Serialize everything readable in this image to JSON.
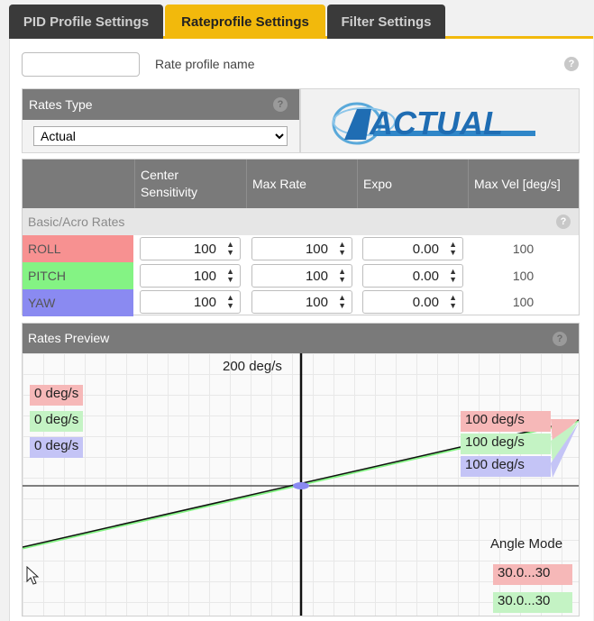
{
  "tabs": [
    {
      "label": "PID Profile Settings",
      "active": false
    },
    {
      "label": "Rateprofile Settings",
      "active": true
    },
    {
      "label": "Filter Settings",
      "active": false
    }
  ],
  "rate_profile": {
    "name_value": "",
    "name_label": "Rate profile name",
    "help_icon": "question-icon"
  },
  "rates_type": {
    "title": "Rates Type",
    "selected": "Actual",
    "logo_text": "ACTUAL"
  },
  "table": {
    "headers": [
      "Center\nSensitivity",
      "Max Rate",
      "Expo",
      "Max Vel [deg/s]"
    ],
    "section": "Basic/Acro Rates",
    "rows": [
      {
        "axis": "ROLL",
        "color": "#f79191",
        "center": "100",
        "max_rate": "100",
        "expo": "0.00",
        "max_vel": "100"
      },
      {
        "axis": "PITCH",
        "color": "#84f384",
        "center": "100",
        "max_rate": "100",
        "expo": "0.00",
        "max_vel": "100"
      },
      {
        "axis": "YAW",
        "color": "#8a8af1",
        "center": "100",
        "max_rate": "100",
        "expo": "0.00",
        "max_vel": "100"
      }
    ]
  },
  "preview": {
    "title": "Rates Preview",
    "top_label": "200 deg/s",
    "current_labels": [
      "0 deg/s",
      "0 deg/s",
      "0 deg/s"
    ],
    "max_labels": [
      "100 deg/s",
      "100 deg/s",
      "100 deg/s"
    ],
    "angle_mode_label": "Angle Mode",
    "angle_values": [
      "30.0...30",
      "30.0...30"
    ]
  },
  "colors": {
    "accent": "#f2b90c",
    "header": "#7a7a7a",
    "roll": "#f79191",
    "pitch": "#84f384",
    "yaw": "#8a8af1"
  }
}
